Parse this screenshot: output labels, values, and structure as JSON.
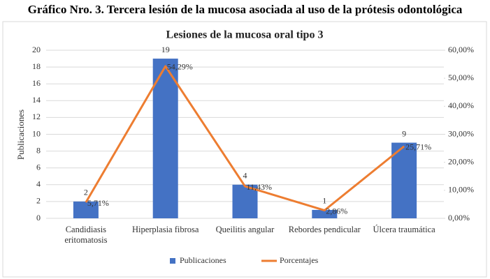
{
  "caption": "Gráfico Nro. 3. Tercera lesión de la mucosa asociada al uso de la prótesis odontológica",
  "chart_data": {
    "type": "bar-line",
    "title": "Lesiones de la mucosa oral tipo 3",
    "categories": [
      "Candidiasis eritomatosis",
      "Hiperplasia fibrosa",
      "Queilitis angular",
      "Rebordes pendicular",
      "Úlcera traumática"
    ],
    "ylabel": "Publicaciones",
    "ylim": [
      0,
      20
    ],
    "yticks": [
      0,
      2,
      4,
      6,
      8,
      10,
      12,
      14,
      16,
      18,
      20
    ],
    "y2lim": [
      0,
      60
    ],
    "y2ticks": [
      {
        "value": 0,
        "label": "0,00%"
      },
      {
        "value": 10,
        "label": "10,00%"
      },
      {
        "value": 20,
        "label": "20,00%"
      },
      {
        "value": 30,
        "label": "30,00%"
      },
      {
        "value": 40,
        "label": "40,00%"
      },
      {
        "value": 50,
        "label": "50,00%"
      },
      {
        "value": 60,
        "label": "60,00%"
      }
    ],
    "grid": true,
    "legend": "bottom",
    "series": [
      {
        "name": "Publicaciones",
        "type": "bar",
        "color": "#4472c4",
        "values": [
          2,
          19,
          4,
          1,
          9
        ]
      },
      {
        "name": "Porcentajes",
        "type": "line",
        "axis": "y2",
        "color": "#ed7d31",
        "values": [
          5.71,
          54.29,
          11.43,
          2.86,
          25.71
        ],
        "value_labels": [
          "5,71%",
          "54,29%",
          "11,43%",
          "2,86%",
          "25,71%"
        ]
      }
    ]
  }
}
